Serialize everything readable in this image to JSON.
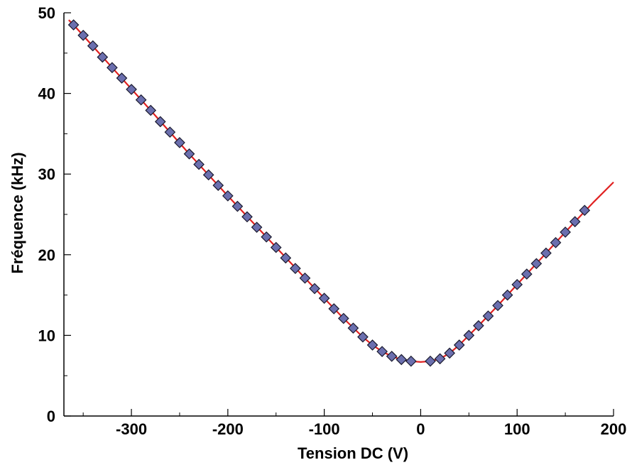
{
  "chart_data": {
    "type": "scatter",
    "xlabel": "Tension DC (V)",
    "ylabel": "Fréquence (kHz)",
    "xlim": [
      -370,
      200
    ],
    "ylim": [
      0,
      50
    ],
    "x_ticks": [
      -300,
      -200,
      -100,
      0,
      100,
      200
    ],
    "x_tick_labels": [
      "-300",
      "-200",
      "-100",
      "0",
      "100",
      "200"
    ],
    "x_minor_ticks": [
      -350,
      -250,
      -150,
      -50,
      50,
      150
    ],
    "y_ticks": [
      0,
      10,
      20,
      30,
      40,
      50
    ],
    "y_tick_labels": [
      "0",
      "10",
      "20",
      "30",
      "40",
      "50"
    ],
    "y_minor_ticks": [
      5,
      15,
      25,
      35,
      45
    ],
    "grid": false,
    "legend": "none",
    "series": [
      {
        "kind": "scatter",
        "marker": "diamond",
        "color": "#6b6fae",
        "edge_color": "#1a1a2e",
        "x": [
          -360,
          -350,
          -340,
          -330,
          -320,
          -310,
          -300,
          -290,
          -280,
          -270,
          -260,
          -250,
          -240,
          -230,
          -220,
          -210,
          -200,
          -190,
          -180,
          -170,
          -160,
          -150,
          -140,
          -130,
          -120,
          -110,
          -100,
          -90,
          -80,
          -70,
          -60,
          -50,
          -40,
          -30,
          -20,
          -10,
          10,
          20,
          30,
          40,
          50,
          60,
          70,
          80,
          90,
          100,
          110,
          120,
          130,
          140,
          150,
          160,
          170
        ],
        "y": [
          48.5,
          47.2,
          45.9,
          44.5,
          43.2,
          41.9,
          40.5,
          39.2,
          37.9,
          36.5,
          35.2,
          33.9,
          32.5,
          31.2,
          29.9,
          28.6,
          27.3,
          26.0,
          24.7,
          23.4,
          22.2,
          20.9,
          19.6,
          18.3,
          17.1,
          15.8,
          14.6,
          13.3,
          12.1,
          10.9,
          9.8,
          8.8,
          8.0,
          7.4,
          7.0,
          6.8,
          6.8,
          7.1,
          7.8,
          8.8,
          10.0,
          11.2,
          12.4,
          13.7,
          15.0,
          16.3,
          17.6,
          18.9,
          20.2,
          21.5,
          22.8,
          24.1,
          25.5
        ]
      },
      {
        "kind": "line",
        "color": "#e02020",
        "x": [
          -365,
          -360,
          -320,
          -280,
          -240,
          -200,
          -160,
          -120,
          -100,
          -80,
          -60,
          -50,
          -40,
          -30,
          -20,
          -10,
          0,
          10,
          20,
          30,
          40,
          50,
          60,
          80,
          100,
          120,
          140,
          160,
          180,
          200
        ],
        "y": [
          49.1,
          48.5,
          43.2,
          37.9,
          32.5,
          27.3,
          22.2,
          17.1,
          14.6,
          12.1,
          9.8,
          8.8,
          8.0,
          7.4,
          7.0,
          6.8,
          6.7,
          6.8,
          7.1,
          7.8,
          8.8,
          10.0,
          11.2,
          13.7,
          16.3,
          18.9,
          21.5,
          24.1,
          26.6,
          29.0
        ]
      }
    ]
  }
}
